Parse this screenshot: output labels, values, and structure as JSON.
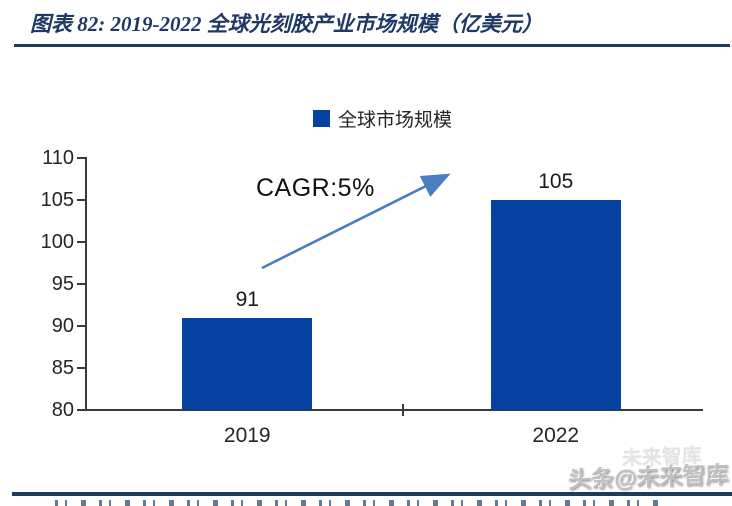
{
  "figure": {
    "title": "图表 82:  2019-2022 全球光刻胶产业市场规模（亿美元）"
  },
  "watermark": {
    "main": "头条@未来智库",
    "ghost": "未来智库"
  },
  "colors": {
    "title": "#1f3864",
    "rule": "#1c3c5e",
    "bar": "#06429f",
    "arrow": "#4a7ec0",
    "axis": "#3a3a3a",
    "text": "#262626"
  },
  "chart_data": {
    "type": "bar",
    "title": "2019-2022 全球光刻胶产业市场规模（亿美元）",
    "legend": [
      "全球市场规模"
    ],
    "legend_position": "top-center",
    "categories": [
      "2019",
      "2022"
    ],
    "values": [
      91,
      105
    ],
    "bar_labels": [
      "91",
      "105"
    ],
    "xlabel": "",
    "ylabel": "",
    "ylim": [
      80,
      110
    ],
    "yticks": [
      110,
      105,
      100,
      95,
      90,
      85,
      80
    ],
    "grid": false,
    "annotation": "CAGR:5%",
    "annotation_type": "growth-arrow"
  }
}
